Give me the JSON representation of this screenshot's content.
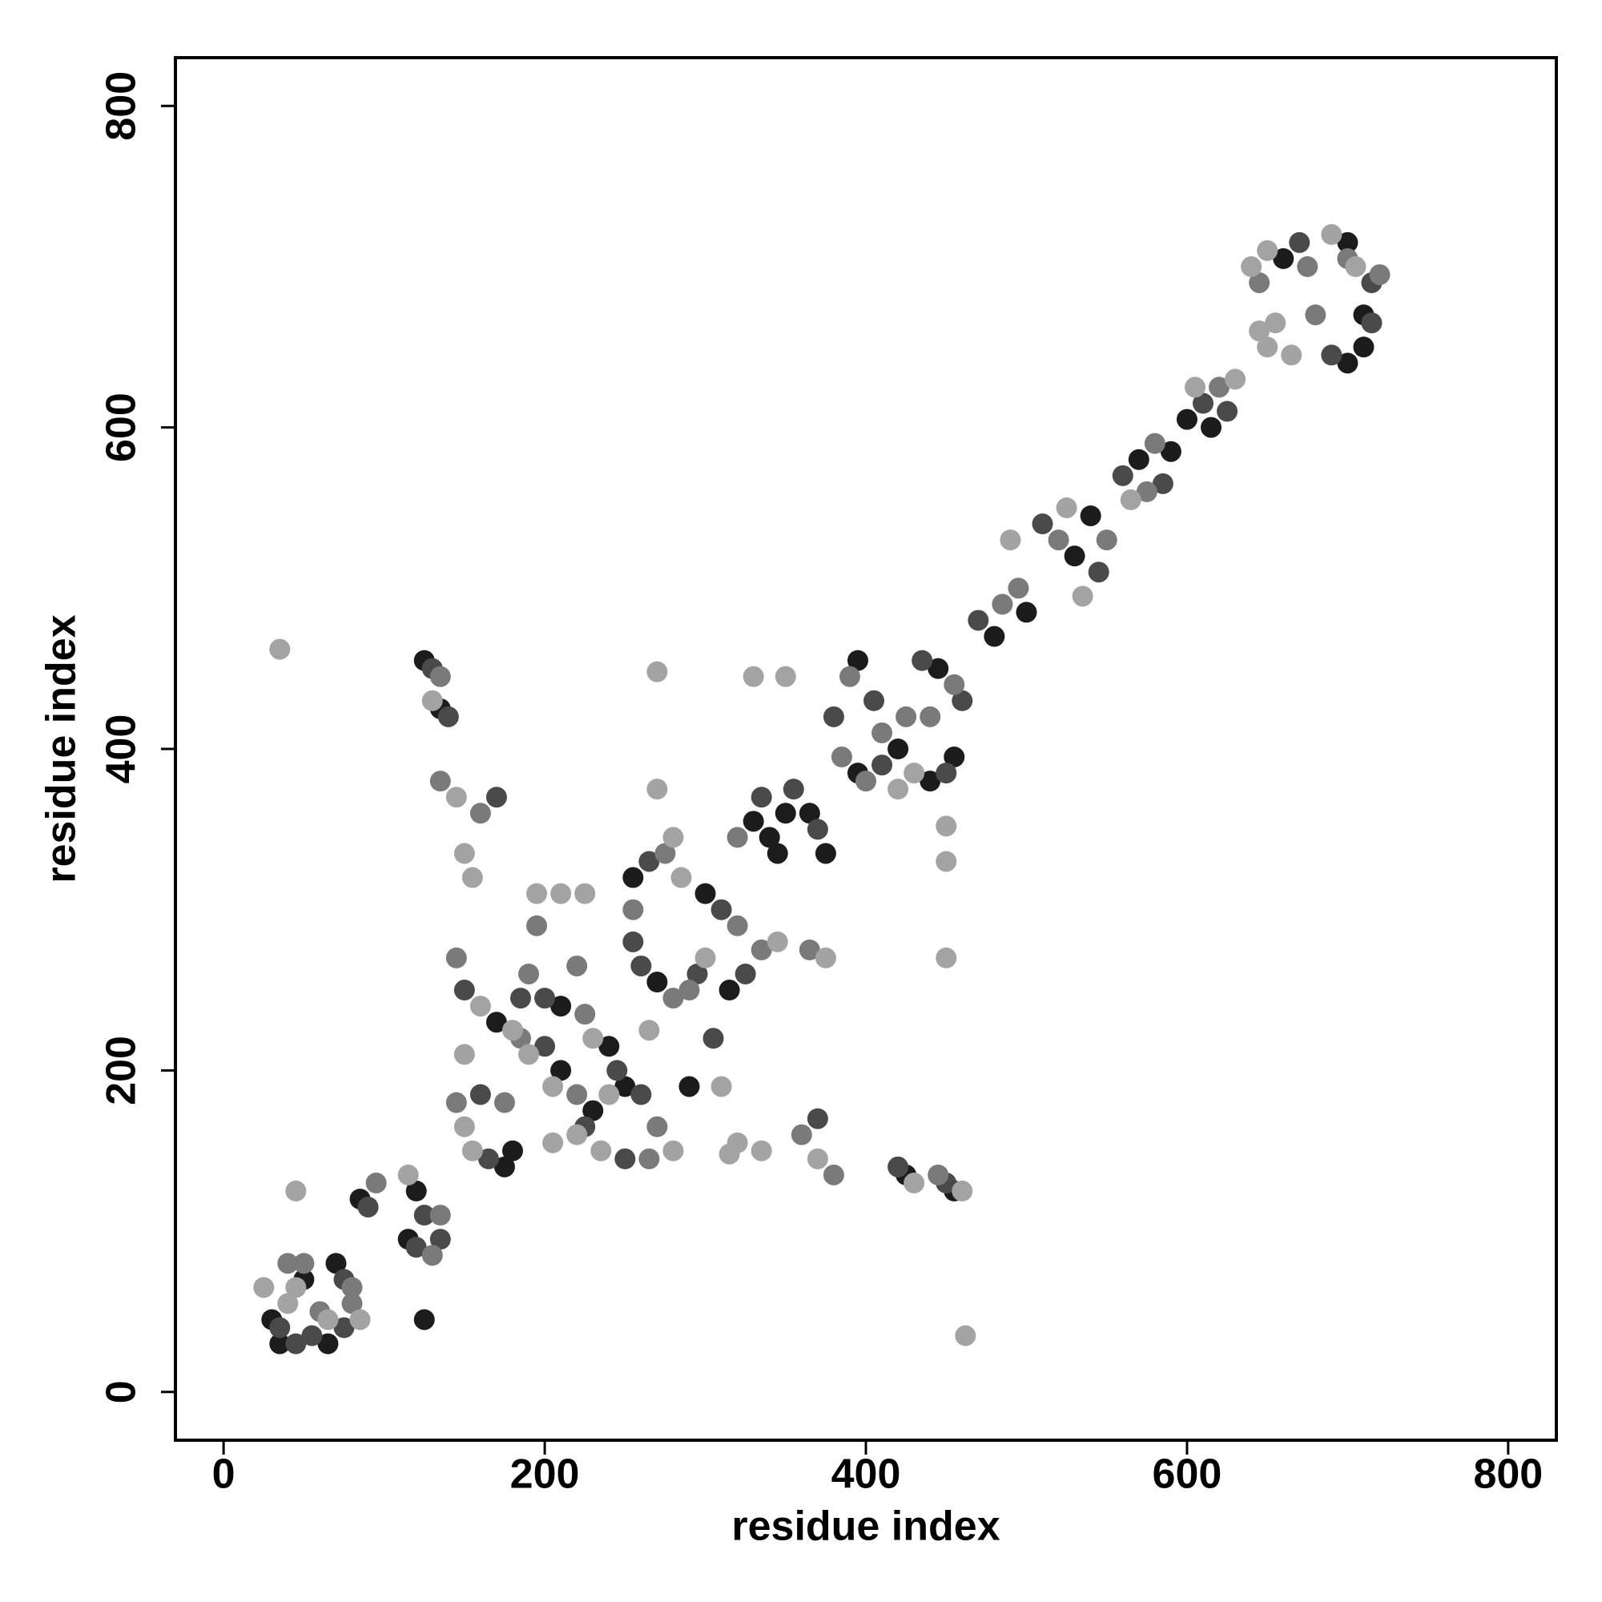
{
  "chart_data": {
    "type": "scatter",
    "x_label": "residue index",
    "y_label": "residue index",
    "xlim": [
      -30,
      830
    ],
    "ylim": [
      -30,
      830
    ],
    "xticks": [
      0,
      200,
      400,
      600,
      800
    ],
    "yticks": [
      0,
      200,
      400,
      600,
      800
    ],
    "series": [
      {
        "color": "#1c1c1c",
        "x": [
          30,
          50,
          70,
          35,
          65,
          85,
          120,
          115,
          125,
          125,
          135,
          455,
          425,
          170,
          180,
          210,
          250,
          240,
          175,
          230,
          210,
          330,
          340,
          345,
          350,
          255,
          300,
          290,
          315,
          365,
          270,
          375,
          395,
          420,
          445,
          395,
          440,
          455,
          480,
          500,
          530,
          540,
          570,
          590,
          600,
          615,
          660,
          700,
          710,
          700,
          710
        ],
        "values": [
          45,
          70,
          80,
          30,
          30,
          120,
          125,
          95,
          45,
          455,
          425,
          125,
          135,
          230,
          150,
          200,
          190,
          215,
          140,
          175,
          240,
          355,
          345,
          335,
          360,
          320,
          310,
          190,
          250,
          360,
          255,
          335,
          455,
          400,
          450,
          385,
          380,
          395,
          470,
          485,
          520,
          545,
          580,
          585,
          605,
          600,
          705,
          715,
          670,
          640,
          650
        ]
      },
      {
        "color": "#4a4a4a",
        "x": [
          35,
          55,
          75,
          45,
          75,
          90,
          125,
          120,
          135,
          130,
          140,
          450,
          420,
          170,
          370,
          150,
          185,
          165,
          160,
          200,
          225,
          260,
          250,
          200,
          245,
          265,
          310,
          295,
          255,
          335,
          355,
          325,
          370,
          260,
          305,
          380,
          405,
          435,
          460,
          410,
          450,
          470,
          510,
          545,
          560,
          585,
          610,
          625,
          670,
          715,
          715,
          690
        ],
        "values": [
          40,
          35,
          70,
          30,
          40,
          115,
          110,
          90,
          95,
          450,
          420,
          130,
          140,
          370,
          170,
          250,
          245,
          145,
          185,
          215,
          165,
          185,
          145,
          245,
          200,
          330,
          300,
          260,
          280,
          370,
          375,
          260,
          350,
          265,
          220,
          420,
          430,
          455,
          430,
          390,
          385,
          480,
          540,
          510,
          570,
          565,
          615,
          610,
          715,
          690,
          665,
          645
        ]
      },
      {
        "color": "#7a7a7a",
        "x": [
          40,
          60,
          80,
          50,
          80,
          95,
          135,
          130,
          135,
          445,
          135,
          160,
          380,
          360,
          145,
          190,
          145,
          175,
          185,
          225,
          220,
          265,
          270,
          195,
          220,
          275,
          320,
          290,
          280,
          320,
          335,
          365,
          255,
          390,
          410,
          425,
          455,
          440,
          385,
          400,
          485,
          495,
          520,
          550,
          575,
          580,
          620,
          645,
          675,
          720,
          680,
          700
        ],
        "values": [
          80,
          50,
          55,
          80,
          65,
          130,
          110,
          85,
          445,
          135,
          380,
          360,
          135,
          160,
          270,
          260,
          180,
          180,
          220,
          235,
          185,
          145,
          165,
          290,
          265,
          335,
          290,
          250,
          245,
          345,
          275,
          275,
          300,
          445,
          410,
          420,
          440,
          420,
          395,
          380,
          490,
          500,
          530,
          530,
          560,
          590,
          625,
          690,
          700,
          695,
          670,
          705
        ]
      },
      {
        "color": "#a3a3a3",
        "x": [
          45,
          65,
          85,
          25,
          40,
          115,
          45,
          130,
          430,
          145,
          150,
          370,
          335,
          155,
          320,
          35,
          462,
          160,
          180,
          150,
          155,
          190,
          230,
          240,
          205,
          235,
          280,
          220,
          195,
          210,
          225,
          150,
          205,
          280,
          270,
          285,
          300,
          265,
          310,
          345,
          375,
          330,
          350,
          270,
          315,
          420,
          430,
          450,
          450,
          450,
          460,
          490,
          535,
          525,
          565,
          605,
          630,
          640,
          650,
          690,
          705,
          655,
          650,
          665,
          645
        ],
        "values": [
          65,
          45,
          45,
          65,
          55,
          135,
          125,
          430,
          130,
          370,
          335,
          145,
          150,
          320,
          155,
          462,
          35,
          240,
          225,
          165,
          150,
          210,
          220,
          185,
          190,
          150,
          150,
          160,
          310,
          310,
          310,
          210,
          155,
          345,
          375,
          320,
          270,
          225,
          190,
          280,
          270,
          445,
          445,
          448,
          148,
          375,
          385,
          352,
          330,
          270,
          125,
          530,
          495,
          550,
          555,
          625,
          630,
          700,
          710,
          720,
          700,
          665,
          650,
          645,
          660
        ]
      }
    ]
  }
}
